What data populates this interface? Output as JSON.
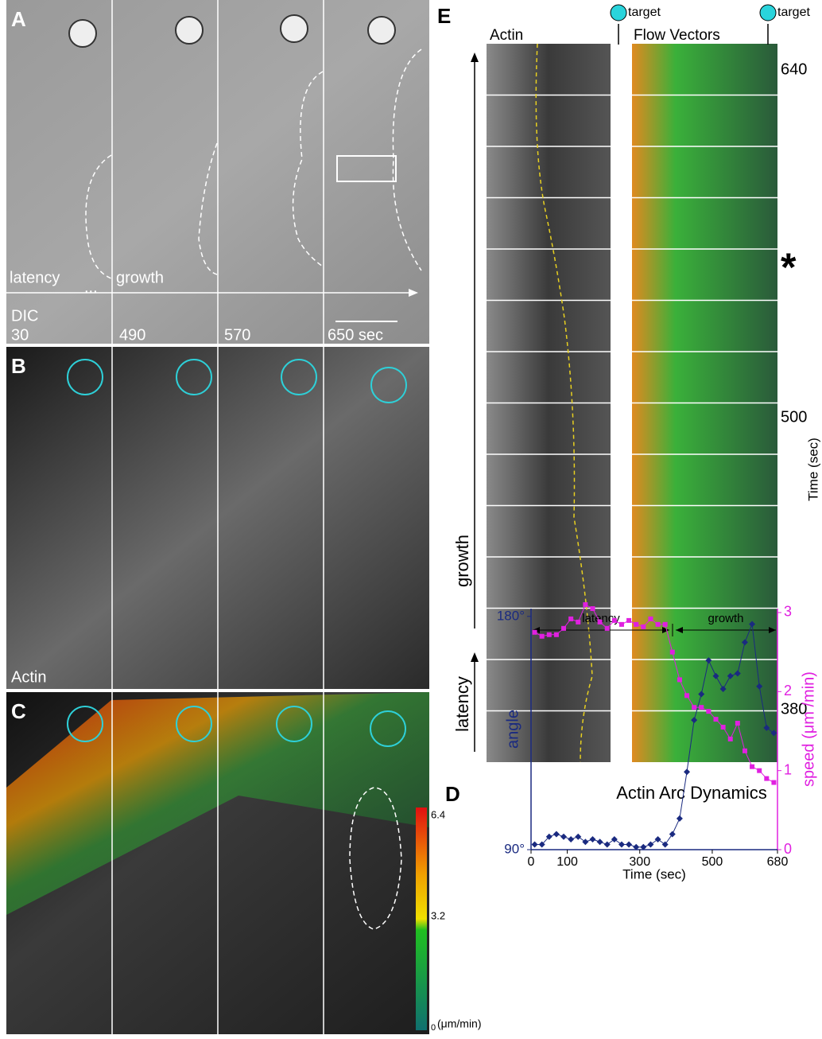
{
  "panels": {
    "A": {
      "label": "A",
      "phases": [
        "latency",
        "...",
        "growth"
      ],
      "channel": "DIC",
      "times": [
        "30",
        "490",
        "570",
        "650 sec"
      ]
    },
    "B": {
      "label": "B",
      "channel": "Actin"
    },
    "C": {
      "label": "C",
      "colorbar_ticks": [
        "6.4",
        "3.2",
        "0"
      ],
      "colorbar_unit": "(μm/min)"
    },
    "D": {
      "label": "D"
    },
    "E": {
      "label": "E",
      "targets": [
        "target",
        "target"
      ],
      "columns": [
        "Actin",
        "Flow Vectors"
      ],
      "time_labels": [
        "640",
        "*",
        "500",
        "380"
      ],
      "axis_label": "Time (sec)",
      "phases": [
        "growth",
        "latency"
      ]
    }
  },
  "chart_data": {
    "type": "line",
    "title": "Actin Arc Dynamics",
    "annotations": [
      "latency",
      "growth"
    ],
    "x": [
      10,
      30,
      50,
      70,
      90,
      110,
      130,
      150,
      170,
      190,
      210,
      230,
      250,
      270,
      290,
      310,
      330,
      350,
      370,
      390,
      410,
      430,
      450,
      470,
      490,
      510,
      530,
      550,
      570,
      590,
      610,
      630,
      650,
      670
    ],
    "series": [
      {
        "name": "angle",
        "color": "#1a2a80",
        "values": [
          92,
          92,
          95,
          96,
          95,
          94,
          95,
          93,
          94,
          93,
          92,
          94,
          92,
          92,
          91,
          91,
          92,
          94,
          92,
          96,
          102,
          120,
          140,
          150,
          163,
          157,
          152,
          157,
          158,
          170,
          177,
          153,
          137,
          135
        ]
      },
      {
        "name": "speed (μm /min)",
        "color": "#e020e0",
        "axis": "y2",
        "values": [
          2.75,
          2.7,
          2.72,
          2.72,
          2.8,
          2.92,
          2.88,
          3.1,
          3.05,
          2.88,
          2.8,
          2.9,
          2.85,
          2.9,
          2.85,
          2.82,
          2.92,
          2.85,
          2.85,
          2.5,
          2.15,
          1.95,
          1.8,
          1.8,
          1.75,
          1.65,
          1.55,
          1.4,
          1.6,
          1.25,
          1.05,
          1.0,
          0.9,
          0.85
        ]
      }
    ],
    "xlabel": "Time (sec)",
    "xlim": [
      0,
      680
    ],
    "xticks": [
      0,
      100,
      300,
      500,
      680
    ],
    "ylim": [
      90,
      183
    ],
    "yticks": [
      {
        "value": 90,
        "label": "90°"
      },
      {
        "value": 180,
        "label": "180°"
      }
    ],
    "y2lim": [
      0,
      3.05
    ],
    "y2ticks": [
      0,
      1,
      2,
      3
    ]
  }
}
